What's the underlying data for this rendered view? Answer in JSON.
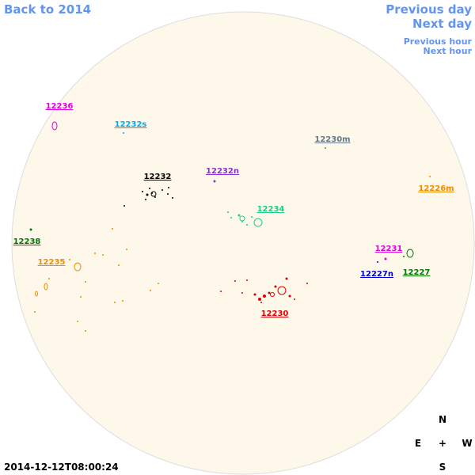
{
  "nav": {
    "back": "Back to 2014",
    "previous_day": "Previous day",
    "next_day": "Next day",
    "previous_hour": "Previous hour",
    "next_hour": "Next hour"
  },
  "regions": [
    "12236",
    "12232s",
    "12232",
    "12232n",
    "12230m",
    "12226m",
    "12234",
    "12238",
    "12235",
    "12231",
    "12227n",
    "12227",
    "12230"
  ],
  "timestamp": "2014-12-12T08:00:24",
  "compass": {
    "north": "N",
    "east": "E",
    "center": "+",
    "west": "W",
    "south": "S"
  }
}
